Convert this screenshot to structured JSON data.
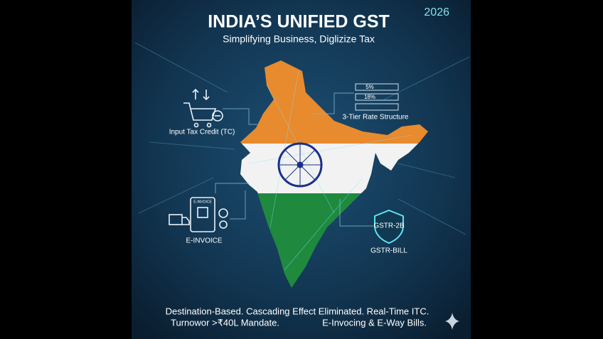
{
  "header": {
    "year": "2026",
    "title": "INDIA’S UNIFIED GST",
    "subtitle": "Simplifying Business, Diglizize Tax"
  },
  "callouts": {
    "itc": "Input Tax Credit (TC)",
    "rates": [
      "5%",
      "18%"
    ],
    "rate_caption": "3-Tier Rate Structure",
    "einvoice_icon": "E-INVOICE",
    "einvoice": "E-INVOICE",
    "gstr_badge": "GSTR-2B",
    "gstr": "GSTR-BILL"
  },
  "footer": {
    "line1": "Destination-Based. Cascading Effect Eliminated. Real-Time ITC.",
    "line2_left": "Turnowor >₹40L Mandate.",
    "line2_right": "E-Invocing & E-Way Bills."
  }
}
